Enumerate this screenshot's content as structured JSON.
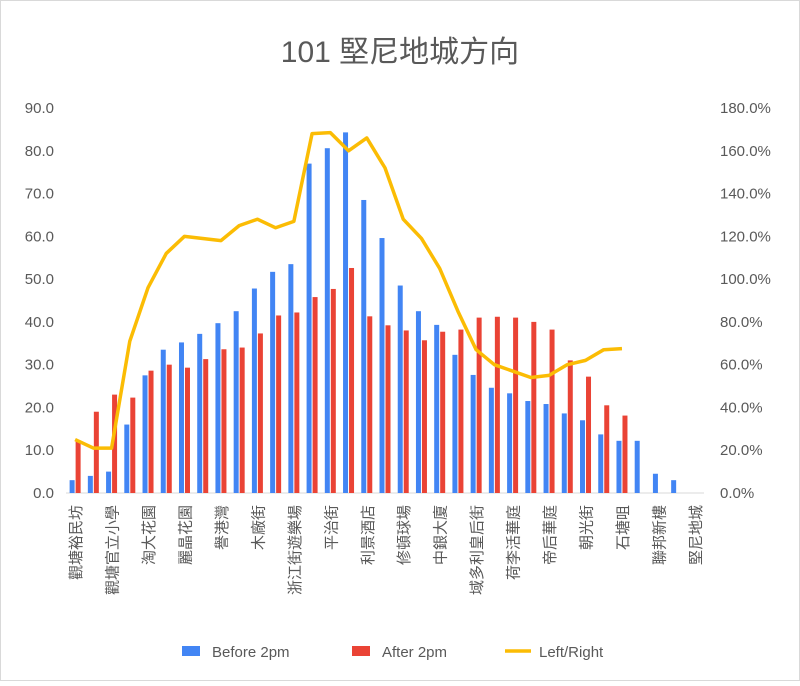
{
  "chart_data": {
    "type": "bar_line",
    "title": "101 堅尼地城方向",
    "categories": [
      "觀塘裕民坊",
      null,
      "觀塘官立小學",
      null,
      "淘大花園",
      null,
      "麗晶花園",
      null,
      "譽港灣",
      null,
      "木廠街",
      null,
      "浙江街遊樂場",
      null,
      "平治街",
      null,
      "利景酒店",
      null,
      "修頓球場",
      null,
      "中銀大廈",
      null,
      "域多利皇后街",
      null,
      "荷李活華庭",
      null,
      "帝后華庭",
      null,
      "朝光街",
      null,
      "石塘咀",
      null,
      "聯邦新樓",
      null,
      "堅尼地城"
    ],
    "series": [
      {
        "name": "Before 2pm",
        "color": "#4285f4",
        "type": "bar",
        "values": [
          3,
          4,
          5,
          16,
          27.5,
          33.5,
          35.2,
          37.2,
          39.7,
          42.5,
          47.8,
          51.7,
          53.5,
          77,
          80.6,
          84.3,
          68.5,
          59.6,
          48.5,
          42.5,
          39.3,
          32.3,
          27.6,
          24.6,
          23.3,
          21.5,
          20.8,
          18.6,
          17,
          13.7,
          12.2,
          12.2,
          4.5,
          3,
          null
        ]
      },
      {
        "name": "After 2pm",
        "color": "#ea4335",
        "type": "bar",
        "values": [
          12.3,
          19,
          23,
          22.3,
          28.6,
          30,
          29.3,
          31.3,
          33.6,
          34,
          37.3,
          41.5,
          42.2,
          45.8,
          47.7,
          52.6,
          41.3,
          39.2,
          38,
          35.7,
          37.7,
          38.2,
          41,
          41.2,
          41,
          40,
          38.2,
          31,
          27.2,
          20.5,
          18.1,
          null,
          null,
          null,
          null
        ]
      },
      {
        "name": "Left/Right",
        "color": "#fbbc04",
        "type": "line",
        "axis": "y2",
        "values": [
          25,
          21,
          21,
          71,
          96,
          112,
          120,
          119,
          118,
          125,
          128,
          124,
          127,
          168,
          168.5,
          160,
          166,
          152,
          128,
          119,
          105,
          85,
          67,
          60,
          57,
          54,
          55,
          60,
          62,
          67,
          67.5,
          null,
          null,
          null,
          null
        ]
      }
    ],
    "ylim": [
      0,
      90
    ],
    "yticks": [
      {
        "value": 0,
        "label": "0.0"
      },
      {
        "value": 10,
        "label": "10.0"
      },
      {
        "value": 20,
        "label": "20.0"
      },
      {
        "value": 30,
        "label": "30.0"
      },
      {
        "value": 40,
        "label": "40.0"
      },
      {
        "value": 50,
        "label": "50.0"
      },
      {
        "value": 60,
        "label": "60.0"
      },
      {
        "value": 70,
        "label": "70.0"
      },
      {
        "value": 80,
        "label": "80.0"
      },
      {
        "value": 90,
        "label": "90.0"
      }
    ],
    "y2lim": [
      0,
      180
    ],
    "y2ticks": [
      {
        "value": 0,
        "label": "0.0%"
      },
      {
        "value": 20,
        "label": "20.0%"
      },
      {
        "value": 40,
        "label": "40.0%"
      },
      {
        "value": 60,
        "label": "60.0%"
      },
      {
        "value": 80,
        "label": "80.0%"
      },
      {
        "value": 100,
        "label": "100.0%"
      },
      {
        "value": 120,
        "label": "120.0%"
      },
      {
        "value": 140,
        "label": "140.0%"
      },
      {
        "value": 160,
        "label": "160.0%"
      },
      {
        "value": 180,
        "label": "180.0%"
      }
    ],
    "legend": "bottom"
  }
}
